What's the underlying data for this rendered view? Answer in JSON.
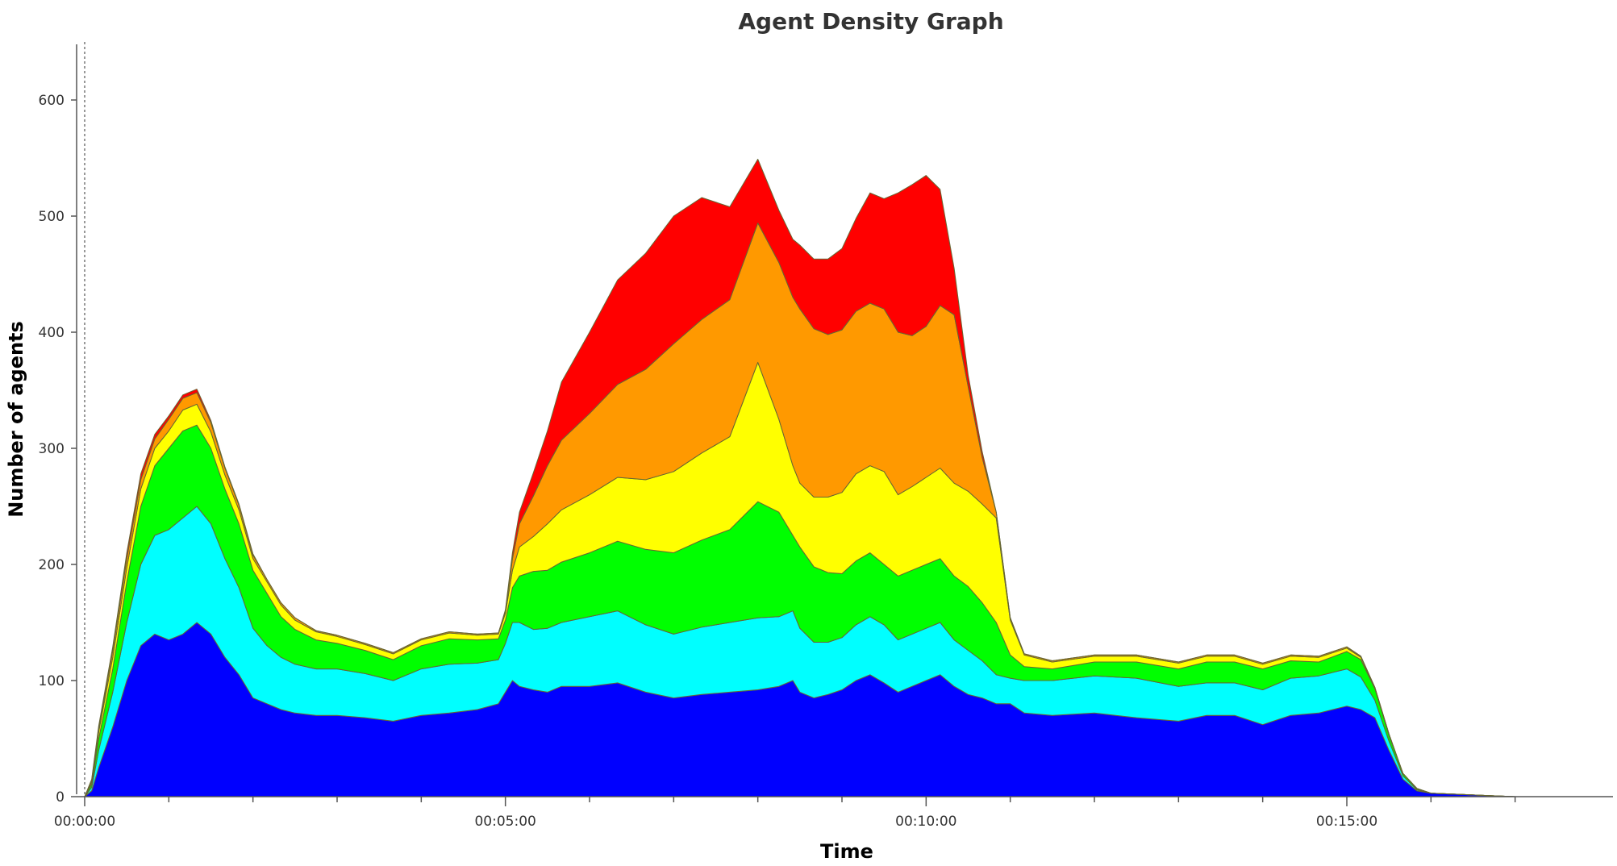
{
  "chart_data": {
    "type": "area",
    "title": "Agent Density Graph",
    "xlabel": "Time",
    "ylabel": "Number of agents",
    "xlim_seconds": [
      0,
      1020
    ],
    "ylim": [
      0,
      650
    ],
    "x_ticks": [
      {
        "seconds": 0,
        "label": "00:00:00"
      },
      {
        "seconds": 300,
        "label": "00:05:00"
      },
      {
        "seconds": 600,
        "label": "00:10:00"
      },
      {
        "seconds": 900,
        "label": "00:15:00"
      }
    ],
    "y_ticks": [
      0,
      100,
      200,
      300,
      400,
      500,
      600
    ],
    "grid": false,
    "legend": "none",
    "stacked": true,
    "x_seconds": [
      0,
      5,
      10,
      20,
      30,
      40,
      50,
      60,
      70,
      80,
      90,
      100,
      110,
      120,
      130,
      140,
      150,
      165,
      180,
      200,
      220,
      240,
      260,
      280,
      295,
      300,
      305,
      310,
      320,
      330,
      340,
      360,
      380,
      400,
      420,
      440,
      460,
      480,
      495,
      505,
      510,
      520,
      530,
      540,
      550,
      560,
      570,
      580,
      590,
      600,
      610,
      620,
      630,
      640,
      650,
      660,
      670,
      690,
      720,
      750,
      780,
      800,
      820,
      840,
      860,
      880,
      900,
      910,
      920,
      930,
      940,
      950,
      960,
      980,
      1000,
      1020
    ],
    "series": [
      {
        "color": "#0000ff",
        "values": [
          0,
          5,
          25,
          60,
          100,
          130,
          140,
          135,
          140,
          150,
          140,
          120,
          105,
          85,
          80,
          75,
          72,
          70,
          70,
          68,
          65,
          70,
          72,
          75,
          80,
          90,
          100,
          95,
          92,
          90,
          95,
          95,
          98,
          90,
          85,
          88,
          90,
          92,
          95,
          100,
          90,
          85,
          88,
          92,
          100,
          105,
          98,
          90,
          95,
          100,
          105,
          95,
          88,
          85,
          80,
          80,
          72,
          70,
          72,
          68,
          65,
          70,
          70,
          62,
          70,
          72,
          78,
          75,
          68,
          40,
          15,
          5,
          3,
          2,
          1,
          0
        ]
      },
      {
        "color": "#00ffff",
        "values": [
          0,
          3,
          15,
          30,
          50,
          70,
          85,
          95,
          100,
          100,
          95,
          85,
          75,
          60,
          50,
          45,
          42,
          40,
          40,
          38,
          35,
          40,
          42,
          40,
          38,
          42,
          50,
          55,
          52,
          55,
          55,
          60,
          62,
          58,
          55,
          58,
          60,
          62,
          60,
          60,
          55,
          48,
          45,
          45,
          48,
          50,
          50,
          45,
          45,
          45,
          45,
          40,
          38,
          32,
          25,
          22,
          28,
          30,
          32,
          34,
          30,
          28,
          28,
          30,
          32,
          32,
          32,
          28,
          15,
          8,
          3,
          1,
          0,
          0,
          0,
          0
        ]
      },
      {
        "color": "#00ff00",
        "values": [
          0,
          3,
          10,
          20,
          35,
          50,
          60,
          70,
          75,
          70,
          65,
          60,
          55,
          50,
          45,
          35,
          30,
          25,
          22,
          20,
          18,
          20,
          22,
          20,
          18,
          20,
          30,
          40,
          50,
          50,
          52,
          55,
          60,
          65,
          70,
          75,
          80,
          100,
          90,
          65,
          70,
          65,
          60,
          55,
          55,
          55,
          52,
          55,
          55,
          55,
          55,
          55,
          55,
          50,
          45,
          20,
          12,
          10,
          12,
          14,
          15,
          18,
          18,
          18,
          15,
          12,
          15,
          15,
          10,
          5,
          2,
          1,
          0,
          0,
          0,
          0
        ]
      },
      {
        "color": "#ffff00",
        "values": [
          0,
          2,
          6,
          10,
          12,
          15,
          15,
          15,
          18,
          18,
          14,
          12,
          12,
          10,
          10,
          10,
          8,
          7,
          6,
          5,
          5,
          5,
          5,
          4,
          4,
          6,
          15,
          25,
          30,
          40,
          45,
          50,
          55,
          60,
          70,
          75,
          80,
          120,
          80,
          60,
          55,
          60,
          65,
          70,
          75,
          75,
          80,
          70,
          72,
          75,
          78,
          80,
          82,
          85,
          90,
          30,
          10,
          6,
          5,
          5,
          5,
          5,
          5,
          4,
          4,
          4,
          3,
          2,
          1,
          1,
          0,
          0,
          0,
          0,
          0,
          0
        ]
      },
      {
        "color": "#ff9900",
        "values": [
          0,
          1,
          3,
          6,
          8,
          8,
          8,
          10,
          10,
          10,
          8,
          6,
          4,
          3,
          2,
          2,
          2,
          1,
          1,
          1,
          1,
          1,
          1,
          1,
          1,
          2,
          10,
          20,
          35,
          50,
          60,
          70,
          80,
          95,
          110,
          115,
          118,
          120,
          135,
          145,
          150,
          145,
          140,
          140,
          140,
          140,
          140,
          140,
          130,
          130,
          140,
          145,
          90,
          40,
          5,
          2,
          1,
          1,
          1,
          1,
          1,
          1,
          1,
          1,
          1,
          1,
          1,
          1,
          0,
          0,
          0,
          0,
          0,
          0,
          0,
          0
        ]
      },
      {
        "color": "#ff0000",
        "values": [
          0,
          1,
          2,
          3,
          5,
          5,
          4,
          3,
          3,
          3,
          2,
          1,
          1,
          1,
          0,
          0,
          0,
          0,
          0,
          0,
          0,
          0,
          0,
          0,
          0,
          1,
          5,
          10,
          20,
          30,
          50,
          70,
          90,
          100,
          110,
          105,
          80,
          55,
          45,
          50,
          55,
          60,
          65,
          70,
          80,
          95,
          95,
          120,
          130,
          130,
          100,
          40,
          10,
          5,
          0,
          0,
          0,
          0,
          0,
          0,
          0,
          0,
          0,
          0,
          0,
          0,
          0,
          0,
          0,
          0,
          0,
          0,
          0,
          0,
          0,
          0
        ]
      }
    ]
  }
}
